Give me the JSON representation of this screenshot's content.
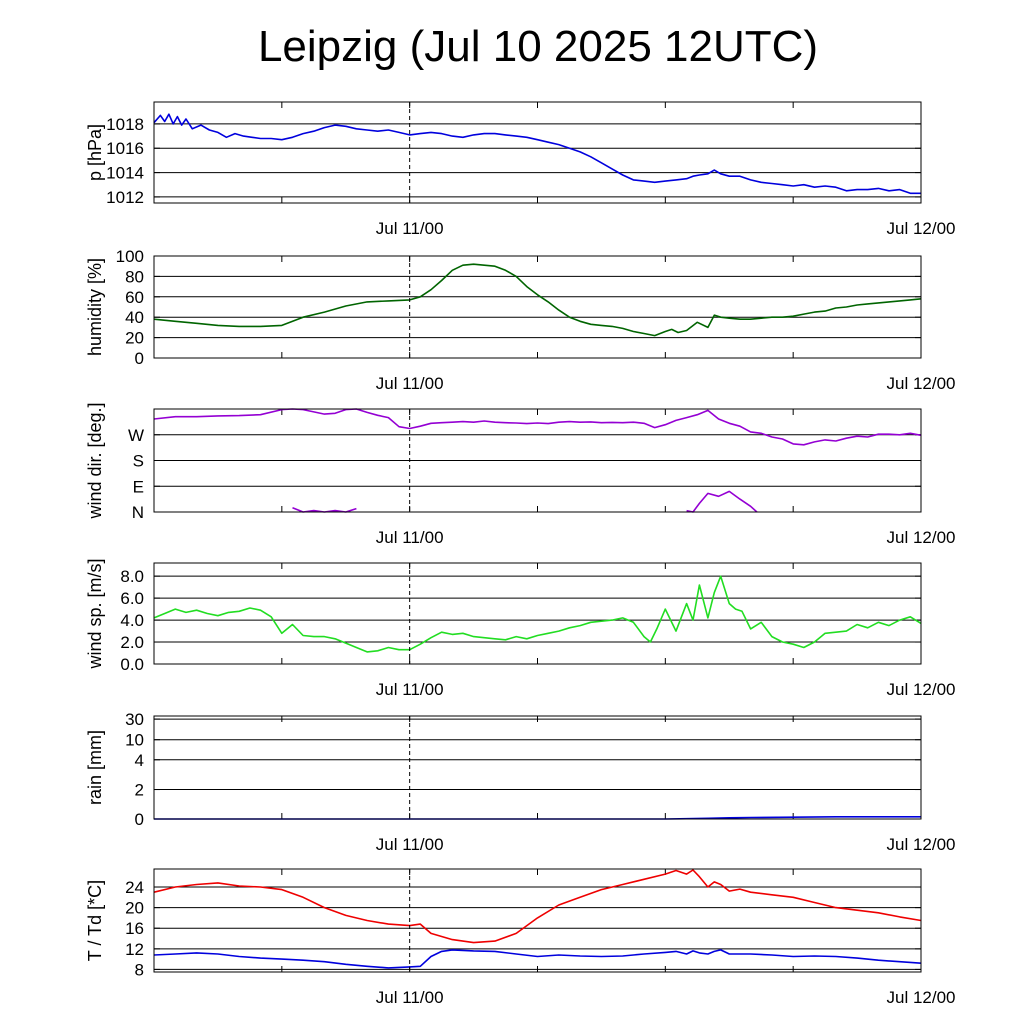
{
  "title": "Leipzig (Jul 10 2025 12UTC)",
  "chart_data": [
    {
      "type": "line",
      "ylabel": "p [hPa]",
      "ylim": [
        1011.5,
        1019.8
      ],
      "yticks": [
        1012,
        1014,
        1016,
        1018
      ],
      "ytick_labels": [
        "1012",
        "1014",
        "1016",
        "1018"
      ],
      "xlim": [
        0,
        36
      ],
      "xticks": [
        12,
        36
      ],
      "xtick_labels": [
        "Jul 11/00",
        "Jul 12/00"
      ],
      "series": [
        {
          "color": "#0000dd",
          "x": [
            0,
            0.3,
            0.5,
            0.7,
            0.9,
            1.1,
            1.3,
            1.5,
            1.8,
            2.2,
            2.6,
            3,
            3.4,
            3.8,
            4.2,
            4.6,
            5,
            5.5,
            6,
            6.5,
            7,
            7.5,
            8,
            8.5,
            9,
            9.5,
            10,
            10.5,
            11,
            11.5,
            12,
            12.5,
            13,
            13.5,
            14,
            14.5,
            15,
            15.5,
            16,
            16.5,
            17,
            17.5,
            18,
            18.5,
            19,
            19.5,
            20,
            20.5,
            21,
            21.5,
            22,
            22.5,
            23,
            23.5,
            24,
            24.5,
            25,
            25.3,
            25.6,
            26,
            26.3,
            26.6,
            27,
            27.5,
            28,
            28.5,
            29,
            29.5,
            30,
            30.5,
            31,
            31.5,
            32,
            32.5,
            33,
            33.5,
            34,
            34.5,
            35,
            35.5,
            36
          ],
          "y": [
            1018.1,
            1018.7,
            1018.2,
            1018.8,
            1018.0,
            1018.6,
            1017.9,
            1018.4,
            1017.6,
            1017.9,
            1017.5,
            1017.3,
            1016.9,
            1017.2,
            1017.0,
            1016.9,
            1016.8,
            1016.8,
            1016.7,
            1016.9,
            1017.2,
            1017.4,
            1017.7,
            1017.9,
            1017.8,
            1017.6,
            1017.5,
            1017.4,
            1017.5,
            1017.3,
            1017.1,
            1017.2,
            1017.3,
            1017.2,
            1017.0,
            1016.9,
            1017.1,
            1017.2,
            1017.2,
            1017.1,
            1017.0,
            1016.9,
            1016.7,
            1016.5,
            1016.3,
            1016.0,
            1015.7,
            1015.3,
            1014.8,
            1014.3,
            1013.8,
            1013.4,
            1013.3,
            1013.2,
            1013.3,
            1013.4,
            1013.5,
            1013.7,
            1013.8,
            1013.9,
            1014.2,
            1013.9,
            1013.7,
            1013.7,
            1013.4,
            1013.2,
            1013.1,
            1013.0,
            1012.9,
            1013.0,
            1012.8,
            1012.9,
            1012.8,
            1012.5,
            1012.6,
            1012.6,
            1012.7,
            1012.5,
            1012.6,
            1012.3,
            1012.3
          ]
        }
      ]
    },
    {
      "type": "line",
      "ylabel": "humidity [%]",
      "ylim": [
        0,
        100
      ],
      "yticks": [
        0,
        20,
        40,
        60,
        80,
        100
      ],
      "ytick_labels": [
        "0",
        "20",
        "40",
        "60",
        "80",
        "100"
      ],
      "xlim": [
        0,
        36
      ],
      "xticks": [
        12,
        36
      ],
      "xtick_labels": [
        "Jul 11/00",
        "Jul 12/00"
      ],
      "series": [
        {
          "color": "#006400",
          "x": [
            0,
            1,
            2,
            3,
            4,
            5,
            6,
            7,
            8,
            9,
            10,
            11,
            12,
            12.5,
            13,
            13.5,
            14,
            14.5,
            15,
            15.5,
            16,
            16.5,
            17,
            17.5,
            18,
            18.5,
            19,
            19.5,
            20,
            20.5,
            21,
            21.5,
            22,
            22.5,
            23,
            23.5,
            24,
            24.3,
            24.6,
            25,
            25.5,
            26,
            26.3,
            26.6,
            27,
            27.5,
            28,
            28.5,
            29,
            29.5,
            30,
            30.5,
            31,
            31.5,
            32,
            32.5,
            33,
            33.5,
            34,
            34.5,
            35,
            35.5,
            36
          ],
          "y": [
            38,
            36,
            34,
            32,
            31,
            31,
            32,
            40,
            45,
            51,
            55,
            56,
            57,
            60,
            67,
            76,
            86,
            91,
            92,
            91,
            90,
            86,
            80,
            70,
            62,
            55,
            47,
            40,
            36,
            33,
            32,
            31,
            29,
            26,
            24,
            22,
            26,
            28,
            25,
            27,
            35,
            30,
            42,
            40,
            39,
            38,
            38,
            39,
            40,
            40,
            41,
            43,
            45,
            46,
            49,
            50,
            52,
            53,
            54,
            55,
            56,
            57,
            58
          ]
        }
      ]
    },
    {
      "type": "line",
      "ylabel": "wind dir. [deg.]",
      "ylim": [
        0,
        360
      ],
      "yticks": [
        0,
        90,
        180,
        270
      ],
      "ytick_labels": [
        "N",
        "E",
        "S",
        "W"
      ],
      "xlim": [
        0,
        36
      ],
      "xticks": [
        12,
        36
      ],
      "xtick_labels": [
        "Jul 11/00",
        "Jul 12/00"
      ],
      "series": [
        {
          "color": "#9400d3",
          "x": [
            0,
            1,
            2,
            3,
            4,
            5,
            6,
            6.5,
            7,
            7.5,
            8,
            8.5,
            9,
            9.5,
            10,
            10.5,
            11,
            11.5,
            12,
            12.5,
            13,
            13.5,
            14,
            14.5,
            15,
            15.5,
            16,
            16.5,
            17,
            17.5,
            18,
            18.5,
            19,
            19.5,
            20,
            20.5,
            21,
            21.5,
            22,
            22.5,
            23,
            23.5,
            24,
            24.5,
            25,
            25.5,
            26,
            26.5,
            27,
            27.5,
            28,
            28.5,
            29,
            29.5,
            30,
            30.5,
            31,
            31.5,
            32,
            32.5,
            33,
            33.5,
            34,
            34.5,
            35,
            35.5,
            36
          ],
          "y": [
            325,
            333,
            333,
            336,
            337,
            340,
            358,
            360,
            358,
            350,
            342,
            345,
            358,
            360,
            348,
            338,
            330,
            298,
            292,
            300,
            310,
            312,
            314,
            316,
            314,
            318,
            314,
            312,
            311,
            309,
            311,
            309,
            314,
            316,
            314,
            315,
            312,
            313,
            312,
            314,
            310,
            295,
            305,
            320,
            330,
            340,
            355,
            325,
            310,
            300,
            280,
            275,
            262,
            255,
            238,
            235,
            245,
            252,
            248,
            258,
            265,
            262,
            272,
            272,
            270,
            275,
            268
          ]
        },
        {
          "color": "#9400d3",
          "x": [
            6.5,
            7,
            7.5,
            8,
            8.5,
            9,
            9.5
          ],
          "y": [
            15,
            0,
            5,
            0,
            5,
            0,
            12
          ]
        },
        {
          "color": "#9400d3",
          "x": [
            25,
            25.3,
            25.6,
            26,
            26.5,
            27,
            27.5,
            28,
            28.3
          ],
          "y": [
            5,
            0,
            30,
            65,
            55,
            72,
            45,
            20,
            0
          ]
        }
      ]
    },
    {
      "type": "line",
      "ylabel": "wind sp. [m/s]",
      "ylim": [
        0,
        9.2
      ],
      "yticks": [
        0,
        2,
        4,
        6,
        8
      ],
      "ytick_labels": [
        "0.0",
        "2.0",
        "4.0",
        "6.0",
        "8.0"
      ],
      "xlim": [
        0,
        36
      ],
      "xticks": [
        12,
        36
      ],
      "xtick_labels": [
        "Jul 11/00",
        "Jul 12/00"
      ],
      "series": [
        {
          "color": "#22dd22",
          "x": [
            0,
            0.5,
            1,
            1.5,
            2,
            2.5,
            3,
            3.5,
            4,
            4.5,
            5,
            5.5,
            6,
            6.5,
            7,
            7.5,
            8,
            8.5,
            9,
            9.5,
            10,
            10.5,
            11,
            11.5,
            12,
            12.5,
            13,
            13.5,
            14,
            14.5,
            15,
            15.5,
            16,
            16.5,
            17,
            17.5,
            18,
            18.5,
            19,
            19.5,
            20,
            20.5,
            21,
            21.5,
            22,
            22.5,
            23,
            23.3,
            23.6,
            24,
            24.5,
            25,
            25.3,
            25.6,
            26,
            26.3,
            26.6,
            27,
            27.3,
            27.6,
            28,
            28.5,
            29,
            29.5,
            30,
            30.5,
            31,
            31.5,
            32,
            32.5,
            33,
            33.5,
            34,
            34.5,
            35,
            35.5,
            36
          ],
          "y": [
            4.2,
            4.6,
            5.0,
            4.7,
            4.9,
            4.6,
            4.4,
            4.7,
            4.8,
            5.1,
            4.9,
            4.3,
            2.8,
            3.6,
            2.6,
            2.5,
            2.5,
            2.3,
            1.9,
            1.5,
            1.1,
            1.2,
            1.5,
            1.3,
            1.3,
            1.8,
            2.4,
            2.9,
            2.7,
            2.8,
            2.5,
            2.4,
            2.3,
            2.2,
            2.5,
            2.3,
            2.6,
            2.8,
            3.0,
            3.3,
            3.5,
            3.8,
            3.9,
            4.0,
            4.2,
            3.8,
            2.5,
            2.0,
            3.2,
            5.0,
            3.0,
            5.5,
            4.0,
            7.2,
            4.2,
            6.5,
            8.0,
            5.5,
            5.0,
            4.8,
            3.2,
            3.8,
            2.5,
            2.0,
            1.8,
            1.5,
            2.0,
            2.8,
            2.9,
            3.0,
            3.6,
            3.3,
            3.8,
            3.5,
            4.0,
            4.3,
            3.7
          ]
        }
      ]
    },
    {
      "type": "line",
      "ylabel": "rain [mm]",
      "ylim": [
        0,
        30
      ],
      "yticks": [
        0,
        2,
        4,
        10,
        30
      ],
      "ytick_labels": [
        "0",
        "2",
        "4",
        "10",
        "30"
      ],
      "xlim": [
        0,
        36
      ],
      "xticks": [
        12,
        36
      ],
      "xtick_labels": [
        "Jul 11/00",
        "Jul 12/00"
      ],
      "series": [
        {
          "color": "#0000dd",
          "x": [
            0,
            24,
            25,
            26,
            27,
            28,
            30,
            32,
            34,
            36
          ],
          "y": [
            0,
            0,
            0.02,
            0.05,
            0.08,
            0.1,
            0.12,
            0.15,
            0.15,
            0.15
          ]
        }
      ]
    },
    {
      "type": "line",
      "ylabel": "T / Td [*C]",
      "ylim": [
        7.5,
        27.5
      ],
      "yticks": [
        8,
        12,
        16,
        20,
        24
      ],
      "ytick_labels": [
        "8",
        "12",
        "16",
        "20",
        "24"
      ],
      "xlim": [
        0,
        36
      ],
      "xticks": [
        12,
        36
      ],
      "xtick_labels": [
        "Jul 11/00",
        "Jul 12/00"
      ],
      "series": [
        {
          "name": "T",
          "color": "#ee0000",
          "x": [
            0,
            1,
            2,
            3,
            4,
            5,
            6,
            7,
            8,
            9,
            10,
            11,
            12,
            12.5,
            13,
            14,
            15,
            16,
            17,
            18,
            19,
            20,
            21,
            22,
            23,
            24,
            24.5,
            25,
            25.3,
            25.6,
            26,
            26.3,
            26.6,
            27,
            27.5,
            28,
            29,
            30,
            31,
            32,
            33,
            34,
            35,
            36
          ],
          "y": [
            23,
            24,
            24.5,
            24.8,
            24.2,
            24,
            23.5,
            22,
            20,
            18.5,
            17.5,
            16.8,
            16.5,
            16.8,
            15,
            13.8,
            13.2,
            13.5,
            15,
            18,
            20.5,
            22,
            23.5,
            24.5,
            25.5,
            26.5,
            27.2,
            26.5,
            27.3,
            26,
            24,
            25,
            24.5,
            23.2,
            23.6,
            23,
            22.5,
            22,
            21,
            20,
            19.5,
            19,
            18.2,
            17.5
          ]
        },
        {
          "name": "Td",
          "color": "#0000dd",
          "x": [
            0,
            1,
            2,
            3,
            4,
            5,
            6,
            7,
            8,
            9,
            10,
            11,
            12,
            12.5,
            13,
            13.5,
            14,
            15,
            16,
            17,
            18,
            19,
            20,
            21,
            22,
            23,
            24,
            24.5,
            25,
            25.3,
            25.6,
            26,
            26.3,
            26.6,
            27,
            28,
            29,
            30,
            31,
            32,
            33,
            34,
            35,
            36
          ],
          "y": [
            10.8,
            11.0,
            11.2,
            11.0,
            10.5,
            10.2,
            10.0,
            9.8,
            9.5,
            9.0,
            8.6,
            8.3,
            8.5,
            8.6,
            10.5,
            11.5,
            11.8,
            11.6,
            11.5,
            11.0,
            10.5,
            10.8,
            10.6,
            10.5,
            10.6,
            11.0,
            11.3,
            11.5,
            11.0,
            11.6,
            11.2,
            11.0,
            11.5,
            11.8,
            11.0,
            11.0,
            10.8,
            10.5,
            10.6,
            10.5,
            10.2,
            9.8,
            9.5,
            9.2
          ]
        }
      ]
    }
  ]
}
